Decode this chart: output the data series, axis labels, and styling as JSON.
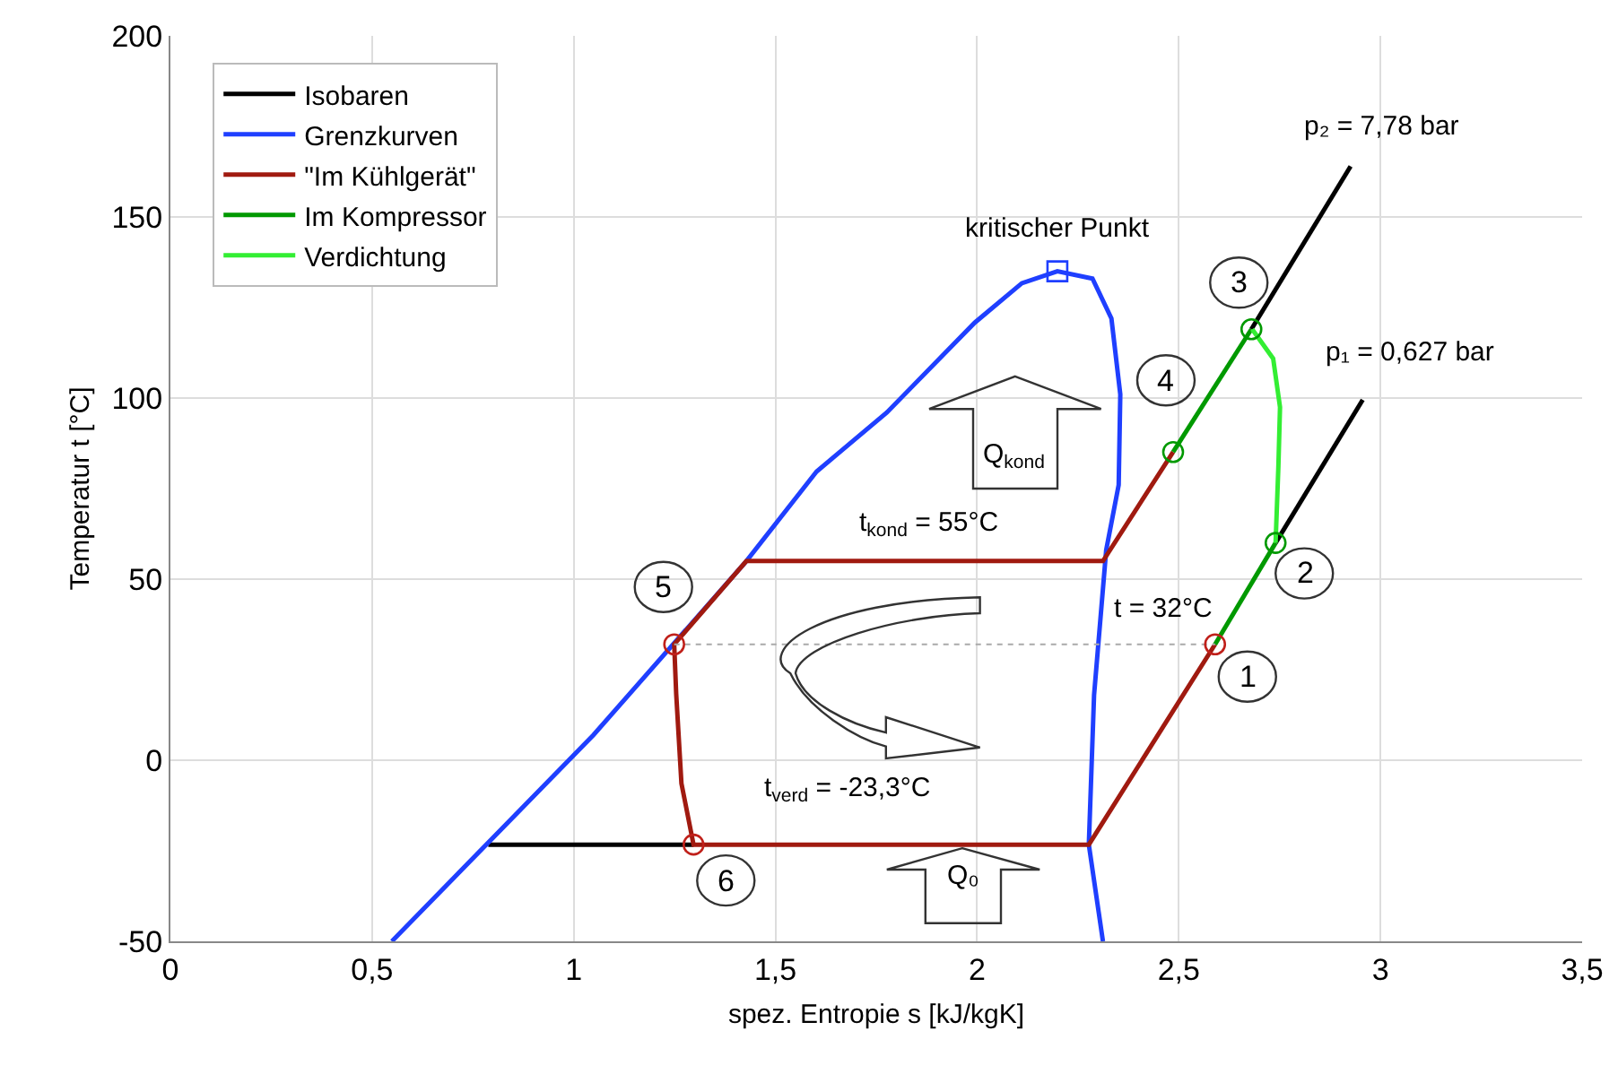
{
  "chart_data": {
    "type": "line",
    "xlabel": "spez. Entropie s [kJ/kgK]",
    "ylabel": "Temperatur t [°C]",
    "xlim": [
      0,
      3.5
    ],
    "ylim": [
      -50,
      200
    ],
    "xticks": [
      0,
      {
        "value": 0.5,
        "label": "0,5"
      },
      1,
      {
        "value": 1.5,
        "label": "1,5"
      },
      2,
      {
        "value": 2.5,
        "label": "2,5"
      },
      3,
      {
        "value": 3.5,
        "label": "3,5"
      }
    ],
    "yticks": [
      -50,
      0,
      50,
      100,
      150,
      200
    ],
    "grid": true,
    "legend": "top left",
    "marker": "none",
    "line_style": "solid",
    "series": [
      {
        "name": "Isobaren",
        "color": "#000000",
        "x": [
          0.788,
          1.297,
          null,
          2.68,
          2.926,
          null,
          2.74,
          2.956
        ],
        "values": [
          -23.3,
          -23.3,
          null,
          119,
          164,
          null,
          60,
          99.5
        ]
      },
      {
        "name": "Grenzkurven",
        "color": "#1f3fff",
        "x": [
          0.549,
          1.049,
          1.428,
          1.602,
          1.776,
          1.994,
          2.111,
          2.199,
          2.286,
          2.333,
          2.355,
          2.351,
          2.32,
          2.29,
          2.277,
          2.312
        ],
        "values": [
          -50,
          7,
          55,
          79.7,
          96,
          120.8,
          131.7,
          135,
          133,
          122,
          101,
          76,
          58,
          18,
          -23.3,
          -50
        ]
      },
      {
        "name": "\"Im Kühlgerät\"",
        "color": "#a01a10",
        "x": [
          2.59,
          2.277,
          1.297,
          1.267,
          1.254,
          1.249,
          1.428,
          2.312,
          2.486
        ],
        "values": [
          32,
          -23.3,
          -23.3,
          -6.4,
          18.3,
          32,
          55,
          55,
          85.1
        ]
      },
      {
        "name": "Im Kompressor",
        "color": "#009900",
        "x": [
          2.59,
          2.74,
          null,
          2.486,
          2.68
        ],
        "values": [
          32,
          60,
          null,
          85.1,
          119
        ]
      },
      {
        "name": "Verdichtung",
        "color": "#33ee33",
        "x": [
          2.74,
          2.747,
          2.751,
          2.734,
          2.682
        ],
        "values": [
          60,
          81.2,
          97.5,
          110.9,
          119
        ]
      },
      {
        "color": "#aaaaaa",
        "line_style": "dotted",
        "x": [
          1.249,
          2.59
        ],
        "values": [
          32,
          32
        ]
      },
      {
        "type": "scatter",
        "marker": "circle",
        "colors": [
          "#c0201a",
          "#009900",
          "#009900",
          "#009900",
          "#c0201a",
          "#c0201a"
        ],
        "x": [
          2.59,
          2.74,
          2.68,
          2.486,
          1.249,
          1.297
        ],
        "values": [
          32,
          60,
          119,
          85.1,
          32,
          -23.3
        ]
      },
      {
        "type": "scatter",
        "marker": "square",
        "color": "#1f3fff",
        "x": [
          2.199
        ],
        "values": [
          135
        ]
      }
    ],
    "annotations": [
      {
        "text": "kritischer Punkt",
        "x": 2.199,
        "y": 135
      },
      {
        "text": "p₂ = 7,78 bar",
        "x": 2.926,
        "y": 164
      },
      {
        "text": "p₁ = 0,627 bar",
        "x": 2.956,
        "y": 99.5
      },
      {
        "text": "t$_{kond}$ = 55°C",
        "x": 1.88,
        "y": 55
      },
      {
        "text": "t = 32°C",
        "x": 2.46,
        "y": 32
      },
      {
        "text": "t$_{verd}$ = -23,3°C",
        "x": 1.68,
        "y": -23.3
      },
      "Q$_{kond}$",
      "Q₀",
      {
        "text": "1",
        "x": 2.59,
        "y": 32
      },
      {
        "text": "2",
        "x": 2.74,
        "y": 60
      },
      {
        "text": "3",
        "x": 2.68,
        "y": 119
      },
      {
        "text": "4",
        "x": 2.486,
        "y": 85.1
      },
      {
        "text": "5",
        "x": 1.249,
        "y": 32
      },
      {
        "text": "6",
        "x": 1.297,
        "y": -23.3
      }
    ]
  }
}
